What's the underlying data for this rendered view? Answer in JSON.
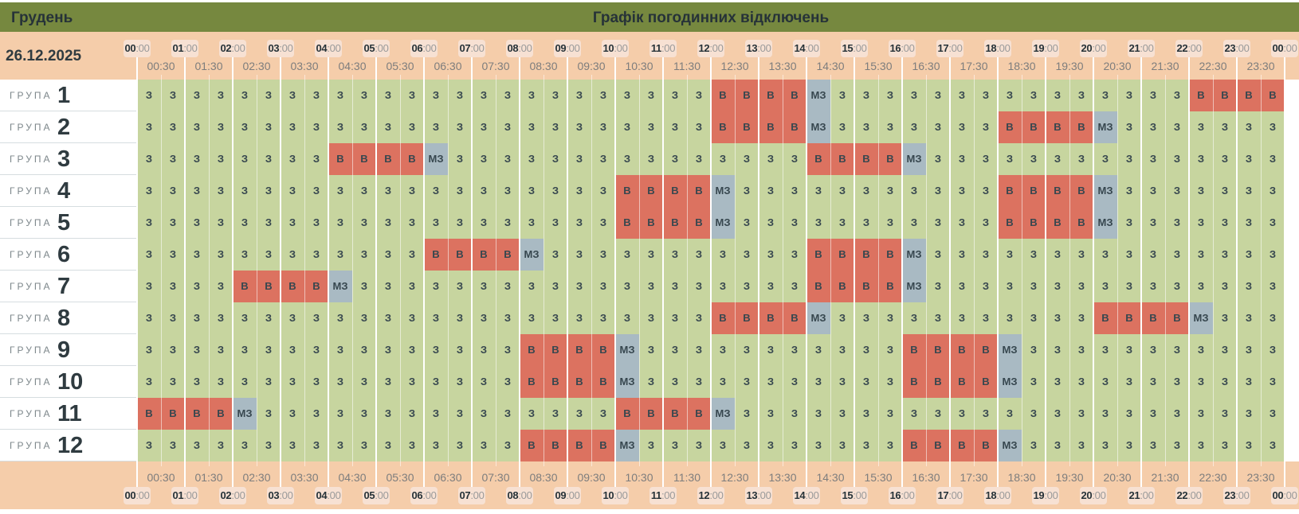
{
  "header": {
    "month": "Грудень",
    "title": "Графік погодинних відключень"
  },
  "date": "26.12.2025",
  "group_label": "ГРУПА",
  "hours": [
    "00",
    "01",
    "02",
    "03",
    "04",
    "05",
    "06",
    "07",
    "08",
    "09",
    "10",
    "11",
    "12",
    "13",
    "14",
    "15",
    "16",
    "17",
    "18",
    "19",
    "20",
    "21",
    "22",
    "23",
    "00"
  ],
  "hour_suffix": ":00",
  "halves": [
    "00:30",
    "01:30",
    "02:30",
    "03:30",
    "04:30",
    "05:30",
    "06:30",
    "07:30",
    "08:30",
    "09:30",
    "10:30",
    "11:30",
    "12:30",
    "13:30",
    "14:30",
    "15:30",
    "16:30",
    "17:30",
    "18:30",
    "19:30",
    "20:30",
    "21:30",
    "22:30",
    "23:30"
  ],
  "legend": {
    "Z": "З",
    "V": "В",
    "M": "МЗ"
  },
  "colors": {
    "Z": "#c7d59f",
    "V": "#dc7260",
    "M": "#a9bac3",
    "header": "#76883f",
    "band": "#f5cdaa"
  },
  "groups": [
    {
      "number": "1",
      "cells": [
        "ZZZZZZZZ",
        "ZZZZZZZZ",
        "ZZZZZZZZ",
        "VVVVMZZZ",
        "ZZZZZZZZ",
        "ZZZZVVVV"
      ]
    },
    {
      "number": "2",
      "cells": [
        "ZZZZZZZZ",
        "ZZZZZZZZ",
        "ZZZZZZZZ",
        "VVVVMZZZ",
        "ZZZZVVVV",
        "MZZZZZZZ"
      ]
    },
    {
      "number": "3",
      "cells": [
        "ZZZZZZZZ",
        "VVVVMZZZ",
        "ZZZZZZZZ",
        "ZZZZVVVV",
        "MZZZZZZZ",
        "ZZZZZZZZ"
      ]
    },
    {
      "number": "4",
      "cells": [
        "ZZZZZZZZ",
        "ZZZZZZZZ",
        "ZZZZVVVV",
        "MZZZZZZZ",
        "ZZZZVVVV",
        "MZZZZZZZ"
      ]
    },
    {
      "number": "5",
      "cells": [
        "ZZZZZZZZ",
        "ZZZZZZZZ",
        "ZZZZVVVV",
        "MZZZZZZZ",
        "ZZZZVVVV",
        "MZZZZZZZ"
      ]
    },
    {
      "number": "6",
      "cells": [
        "ZZZZZZZZ",
        "ZZZZVVVV",
        "MZZZZZZZ",
        "ZZZZVVVV",
        "MZZZZZZZ",
        "ZZZZZZZZ"
      ]
    },
    {
      "number": "7",
      "cells": [
        "ZZZZVVVV",
        "MZZZZZZZ",
        "ZZZZZZZZ",
        "ZZZZVVVV",
        "MZZZZZZZ",
        "ZZZZZZZZ"
      ]
    },
    {
      "number": "8",
      "cells": [
        "ZZZZZZZZ",
        "ZZZZZZZZ",
        "ZZZZZZZZ",
        "VVVVMZZZ",
        "ZZZZZZZZ",
        "VVVVMZZZ"
      ]
    },
    {
      "number": "9",
      "cells": [
        "ZZZZZZZZ",
        "ZZZZZZZZ",
        "VVVVMZZZ",
        "ZZZZZZZZ",
        "VVVVMZZZ",
        "ZZZZZZZZ"
      ]
    },
    {
      "number": "10",
      "cells": [
        "ZZZZZZZZ",
        "ZZZZZZZZ",
        "VVVVMZZZ",
        "ZZZZZZZZ",
        "VVVVMZZZ",
        "ZZZZZZZZ"
      ]
    },
    {
      "number": "11",
      "cells": [
        "VVVVMZZZ",
        "ZZZZZZZZ",
        "ZZZZVVVV",
        "MZZZZZZZ",
        "ZZZZZZZZ",
        "ZZZZZZZZ"
      ]
    },
    {
      "number": "12",
      "cells": [
        "ZZZZZZZZ",
        "ZZZZZZZZ",
        "VVVVMZZZ",
        "ZZZZZZZZ",
        "VVVVMZZZ",
        "ZZZZZZZZ"
      ]
    }
  ]
}
